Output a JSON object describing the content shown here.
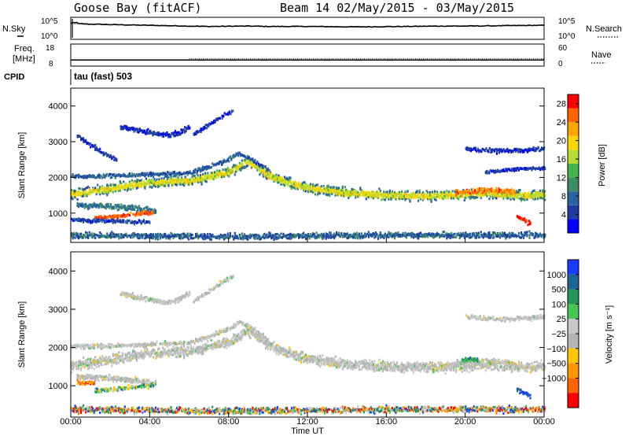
{
  "figure": {
    "title_left": "Goose Bay (fitACF)",
    "title_right": "Beam 14 02/May/2015 - 03/May/2015"
  },
  "chart_data": [
    {
      "type": "line",
      "name": "noise-panel",
      "left_label": "N.Sky",
      "right_label": "N.Search",
      "yticks_left": [
        "10^5",
        "10^0"
      ],
      "yticks_right": [
        "10^5",
        "10^0"
      ],
      "series": [
        {
          "name": "N.Sky",
          "style": "solid",
          "x": [
            0,
            1,
            2,
            3,
            4,
            5,
            6,
            7,
            8,
            9,
            10,
            11,
            12,
            13,
            14,
            15,
            16,
            17,
            18,
            19,
            20,
            21,
            22,
            23,
            24
          ],
          "values_log10": [
            3.8,
            3.6,
            3.5,
            3.4,
            3.3,
            3.2,
            3.1,
            3.0,
            3.05,
            3.1,
            3.0,
            3.0,
            3.0,
            2.95,
            2.9,
            2.9,
            2.95,
            3.0,
            3.05,
            3.1,
            3.1,
            3.15,
            3.2,
            3.25,
            3.3
          ]
        },
        {
          "name": "N.Search",
          "style": "dotted",
          "x": [
            0,
            1,
            2,
            3,
            4,
            5,
            6,
            7,
            8,
            9,
            10,
            11,
            12,
            13,
            14,
            15,
            16,
            17,
            18,
            19,
            20,
            21,
            22,
            23,
            24
          ],
          "values_log10": [
            3.7,
            3.55,
            3.45,
            3.35,
            3.25,
            3.15,
            3.05,
            2.95,
            3.0,
            3.05,
            2.95,
            2.95,
            2.95,
            2.9,
            2.85,
            2.85,
            2.9,
            2.95,
            3.0,
            3.05,
            3.05,
            3.1,
            3.15,
            3.2,
            3.25
          ]
        }
      ]
    },
    {
      "type": "line",
      "name": "frequency-panel",
      "left_label_1": "Freq.",
      "left_label_2": "[MHz]",
      "right_label": "Nave",
      "yticks_left": [
        "18",
        "8"
      ],
      "yticks_right": [
        "60",
        "0"
      ],
      "series": [
        {
          "name": "Freq.",
          "style": "solid",
          "x": [
            0,
            24
          ],
          "values": [
            10.4,
            10.4
          ]
        },
        {
          "name": "Nave",
          "style": "dotted",
          "x": [
            0,
            24
          ],
          "values": [
            18,
            18
          ]
        }
      ]
    },
    {
      "type": "table",
      "name": "cpid-strip",
      "label": "CPID",
      "program": "tau (fast) 503"
    },
    {
      "type": "heatmap",
      "name": "power-panel",
      "ylabel": "Slant Range [km]",
      "ylim": [
        180,
        4500
      ],
      "yticks": [
        1000,
        2000,
        3000,
        4000
      ],
      "xlim": [
        0,
        24
      ],
      "colorbar_label": "Power [dB]",
      "colorbar_ticks": [
        "4",
        "8",
        "12",
        "16",
        "20",
        "24",
        "28"
      ],
      "colorbar_range": [
        0,
        30
      ],
      "colors": [
        "#0000ff",
        "#1e3ca0",
        "#2864a0",
        "#3c8c64",
        "#46b446",
        "#b4dc32",
        "#ffd700",
        "#ffa500",
        "#ff6400",
        "#ff0000"
      ],
      "bands": [
        {
          "t": [
            0,
            1,
            2,
            3,
            4,
            6,
            8,
            9,
            10,
            11,
            12,
            14,
            16,
            18,
            20,
            21,
            22,
            23,
            24
          ],
          "r": [
            1520,
            1600,
            1680,
            1780,
            1850,
            1900,
            2150,
            2450,
            2050,
            1850,
            1700,
            1560,
            1500,
            1480,
            1520,
            1560,
            1520,
            1480,
            1520
          ],
          "w": 320,
          "p": 12
        },
        {
          "t": [
            0,
            2,
            4,
            6,
            7,
            8,
            8.5,
            9,
            10
          ],
          "r": [
            2020,
            2040,
            2080,
            2120,
            2300,
            2500,
            2650,
            2550,
            2200
          ],
          "w": 140,
          "p": 7
        },
        {
          "t": [
            0.3,
            1,
            2,
            2.5,
            3,
            3.5,
            4,
            4.3
          ],
          "r": [
            1220,
            1210,
            1190,
            1170,
            1150,
            1110,
            1080,
            1060
          ],
          "w": 190,
          "p": 9
        },
        {
          "t": [
            1.2,
            2,
            2.6,
            3.2,
            3.8,
            4.2
          ],
          "r": [
            880,
            900,
            920,
            960,
            1000,
            1000
          ],
          "w": 140,
          "p": 26
        },
        {
          "t": [
            0,
            1,
            2,
            3,
            4
          ],
          "r": [
            820,
            790,
            780,
            760,
            740
          ],
          "w": 120,
          "p": 5
        },
        {
          "t": [
            2.5,
            3.5,
            4.5,
            5,
            5.5,
            6
          ],
          "r": [
            3400,
            3300,
            3200,
            3180,
            3260,
            3420
          ],
          "w": 160,
          "p": 4
        },
        {
          "t": [
            6.2,
            7,
            7.6,
            8.2
          ],
          "r": [
            3200,
            3480,
            3700,
            3860
          ],
          "w": 120,
          "p": 4
        },
        {
          "t": [
            0.3,
            1,
            1.7,
            2.3
          ],
          "r": [
            3150,
            2900,
            2650,
            2480
          ],
          "w": 150,
          "p": 4
        },
        {
          "t": [
            20,
            21,
            22,
            23,
            24
          ],
          "r": [
            2800,
            2760,
            2740,
            2760,
            2800
          ],
          "w": 150,
          "p": 4
        },
        {
          "t": [
            21,
            22,
            23,
            24
          ],
          "r": [
            2150,
            2200,
            2250,
            2250
          ],
          "w": 110,
          "p": 4
        },
        {
          "t": [
            19.5,
            20.5,
            21.5,
            22.5
          ],
          "r": [
            1580,
            1620,
            1640,
            1580
          ],
          "w": 180,
          "p": 24
        },
        {
          "t": [
            22.6,
            23,
            23.3
          ],
          "r": [
            900,
            800,
            700
          ],
          "w": 150,
          "p": 28
        },
        {
          "t": [
            0,
            4,
            8,
            12,
            16,
            20,
            24
          ],
          "r": [
            380,
            360,
            340,
            360,
            380,
            380,
            380
          ],
          "w": 200,
          "p": 5
        }
      ]
    },
    {
      "type": "heatmap",
      "name": "velocity-panel",
      "ylabel": "Slant Range [km]",
      "ylim": [
        180,
        4500
      ],
      "yticks": [
        1000,
        2000,
        3000,
        4000
      ],
      "xlim": [
        0,
        24
      ],
      "xlabel": "Time UT",
      "xticks": [
        "00:00",
        "04:00",
        "08:00",
        "12:00",
        "16:00",
        "20:00",
        "00:00"
      ],
      "colorbar_label": "Velocity [m s⁻¹]",
      "colorbar_ticks": [
        "1000",
        "500",
        "100",
        "25",
        "−25",
        "−100",
        "−500",
        "−1000"
      ],
      "colors_top_to_bottom": [
        "#1a3cff",
        "#1e6496",
        "#22965a",
        "#46c850",
        "#c8c8c8",
        "#b4b4b4",
        "#ffc800",
        "#ff9600",
        "#ff6400",
        "#ff0000"
      ],
      "bands": [
        {
          "t": [
            0,
            1,
            2,
            3,
            4,
            6,
            8,
            9,
            10,
            11,
            12,
            14,
            16,
            18,
            20,
            21,
            22,
            23,
            24
          ],
          "r": [
            1520,
            1600,
            1680,
            1780,
            1850,
            1900,
            2150,
            2450,
            2050,
            1850,
            1700,
            1560,
            1500,
            1480,
            1520,
            1560,
            1520,
            1480,
            1520
          ],
          "w": 320,
          "v": "gray"
        },
        {
          "t": [
            0,
            2,
            4,
            6,
            7,
            8,
            8.5,
            9,
            10
          ],
          "r": [
            2020,
            2040,
            2080,
            2120,
            2300,
            2500,
            2650,
            2550,
            2200
          ],
          "w": 140,
          "v": "gray"
        },
        {
          "t": [
            0.3,
            1,
            2,
            2.5,
            3,
            3.5,
            4,
            4.3
          ],
          "r": [
            1220,
            1210,
            1190,
            1170,
            1150,
            1110,
            1080,
            1060
          ],
          "w": 190,
          "v": "gray"
        },
        {
          "t": [
            1.2,
            2,
            2.6,
            3.2,
            3.8,
            4.2
          ],
          "r": [
            880,
            900,
            920,
            960,
            1000,
            1000
          ],
          "w": 150,
          "v": "green"
        },
        {
          "t": [
            0.3,
            0.8,
            1.2
          ],
          "r": [
            1090,
            1080,
            1070
          ],
          "w": 120,
          "v": "orange"
        },
        {
          "t": [
            2.5,
            3.5,
            4.5,
            5,
            5.5,
            6
          ],
          "r": [
            3400,
            3300,
            3200,
            3180,
            3260,
            3420
          ],
          "w": 160,
          "v": "gray"
        },
        {
          "t": [
            6.2,
            7,
            7.6,
            8.2
          ],
          "r": [
            3200,
            3480,
            3700,
            3860
          ],
          "w": 120,
          "v": "gray"
        },
        {
          "t": [
            20,
            21,
            22,
            23,
            24
          ],
          "r": [
            2800,
            2760,
            2740,
            2760,
            2800
          ],
          "w": 150,
          "v": "gray"
        },
        {
          "t": [
            19.5,
            20.5,
            21.5,
            22.5
          ],
          "r": [
            1580,
            1620,
            1640,
            1580
          ],
          "w": 150,
          "v": "gray"
        },
        {
          "t": [
            19.8,
            20.2,
            20.6
          ],
          "r": [
            1660,
            1700,
            1660
          ],
          "w": 120,
          "v": "teal"
        },
        {
          "t": [
            22.6,
            23,
            23.3
          ],
          "r": [
            900,
            800,
            700
          ],
          "w": 150,
          "v": "blue"
        },
        {
          "t": [
            0,
            4,
            8,
            12,
            16,
            20,
            24
          ],
          "r": [
            380,
            360,
            340,
            360,
            380,
            380,
            380
          ],
          "w": 200,
          "v": "mixed"
        }
      ]
    }
  ]
}
